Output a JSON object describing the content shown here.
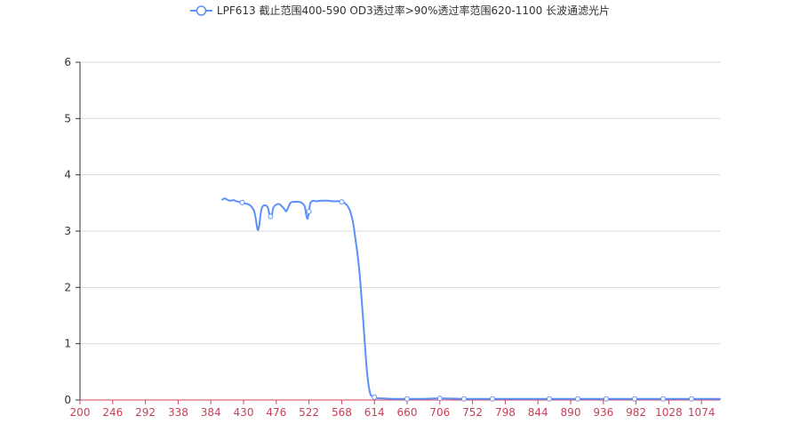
{
  "chart_data": {
    "type": "line",
    "title": "",
    "xlabel": "",
    "ylabel": "",
    "xlim": [
      200,
      1100
    ],
    "ylim": [
      0,
      6
    ],
    "x_ticks": [
      200,
      246,
      292,
      338,
      384,
      430,
      476,
      522,
      568,
      614,
      660,
      706,
      752,
      798,
      844,
      890,
      936,
      982,
      1028,
      1074
    ],
    "y_ticks": [
      0,
      1,
      2,
      3,
      4,
      5,
      6
    ],
    "grid": "horizontal",
    "legend_position": "top-center",
    "series": [
      {
        "name": "LPF613 截止范围400-590 OD3透过率>90%透过率范围620-1100 长波通滤光片",
        "color": "#5b8ff9",
        "x": [
          400,
          404,
          408,
          412,
          416,
          420,
          424,
          428,
          432,
          436,
          440,
          444,
          446,
          448,
          450,
          452,
          454,
          456,
          460,
          464,
          466,
          468,
          470,
          472,
          476,
          480,
          484,
          488,
          490,
          492,
          496,
          500,
          504,
          508,
          512,
          516,
          518,
          520,
          522,
          524,
          528,
          532,
          540,
          548,
          556,
          564,
          568,
          572,
          576,
          580,
          584,
          588,
          592,
          596,
          600,
          604,
          608,
          612,
          614,
          616,
          620,
          626,
          640,
          660,
          680,
          706,
          740,
          780,
          820,
          860,
          900,
          940,
          980,
          1020,
          1060,
          1100
        ],
        "values": [
          3.56,
          3.58,
          3.55,
          3.54,
          3.55,
          3.53,
          3.52,
          3.51,
          3.49,
          3.48,
          3.45,
          3.38,
          3.3,
          3.15,
          3.02,
          3.1,
          3.3,
          3.42,
          3.46,
          3.42,
          3.32,
          3.26,
          3.3,
          3.42,
          3.47,
          3.48,
          3.44,
          3.38,
          3.35,
          3.4,
          3.5,
          3.52,
          3.52,
          3.52,
          3.5,
          3.44,
          3.3,
          3.22,
          3.35,
          3.5,
          3.54,
          3.53,
          3.54,
          3.54,
          3.53,
          3.53,
          3.52,
          3.5,
          3.45,
          3.35,
          3.15,
          2.8,
          2.4,
          1.8,
          1.1,
          0.45,
          0.12,
          0.06,
          0.05,
          0.04,
          0.03,
          0.03,
          0.02,
          0.02,
          0.02,
          0.03,
          0.02,
          0.02,
          0.02,
          0.02,
          0.02,
          0.02,
          0.02,
          0.02,
          0.02,
          0.02
        ]
      }
    ]
  },
  "colors": {
    "line": "#5b8ff9",
    "x_axis": "#d0465c",
    "x_tick_label": "#c8415a",
    "y_axis": "#333333",
    "y_tick_label": "#333333",
    "grid": "#d9d9d9",
    "legend_text": "#333333"
  }
}
